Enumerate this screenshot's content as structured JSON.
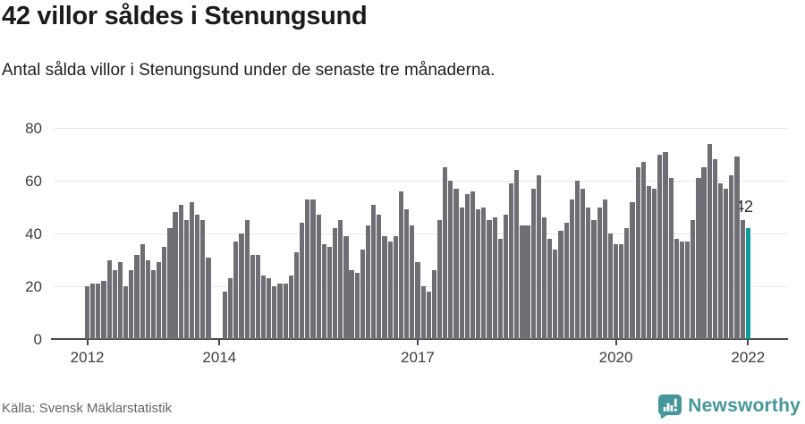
{
  "header": {
    "title": "42 villor såldes i Stenungsund",
    "subtitle": "Antal sålda villor i Stenungsund under de senaste tre månaderna."
  },
  "chart_data": {
    "type": "bar",
    "title": "42 villor såldes i Stenungsund",
    "xlabel": "",
    "ylabel": "",
    "ylim": [
      0,
      80
    ],
    "yticks": [
      0,
      20,
      40,
      60,
      80
    ],
    "grid": "horizontal",
    "x_unit": "month",
    "x_start": "2012-01",
    "x_end": "2022-01",
    "xticks": [
      {
        "label": "2012",
        "index": 0
      },
      {
        "label": "2014",
        "index": 24
      },
      {
        "label": "2017",
        "index": 60
      },
      {
        "label": "2020",
        "index": 96
      },
      {
        "label": "2022",
        "index": 120
      }
    ],
    "values": [
      20,
      21,
      21,
      22,
      30,
      26,
      29,
      20,
      26,
      32,
      36,
      30,
      26,
      29,
      35,
      42,
      48,
      51,
      45,
      52,
      47,
      45,
      31,
      null,
      null,
      18,
      23,
      37,
      40,
      45,
      32,
      32,
      24,
      23,
      20,
      21,
      21,
      24,
      33,
      44,
      53,
      53,
      47,
      36,
      35,
      42,
      45,
      39,
      26,
      25,
      34,
      43,
      51,
      47,
      39,
      37,
      39,
      56,
      49,
      43,
      29,
      20,
      18,
      26,
      45,
      65,
      60,
      57,
      50,
      55,
      56,
      49,
      50,
      45,
      46,
      38,
      47,
      59,
      64,
      43,
      43,
      57,
      62,
      46,
      38,
      34,
      41,
      44,
      53,
      60,
      57,
      50,
      45,
      50,
      53,
      40,
      36,
      36,
      42,
      52,
      65,
      67,
      58,
      57,
      70,
      71,
      61,
      38,
      37,
      37,
      45,
      61,
      65,
      74,
      68,
      59,
      57,
      62,
      69,
      45,
      42
    ],
    "highlight": {
      "index": 120,
      "label": "42"
    },
    "colors": {
      "bar": "#6e6e74",
      "highlight": "#0a9e9e",
      "gridline": "#e8e8e8",
      "axis": "#4a4a4a",
      "tick_label": "#3d3d3d"
    }
  },
  "footer": {
    "source": "Källa: Svensk Mäklarstatistik",
    "brand": "Newsworthy"
  }
}
